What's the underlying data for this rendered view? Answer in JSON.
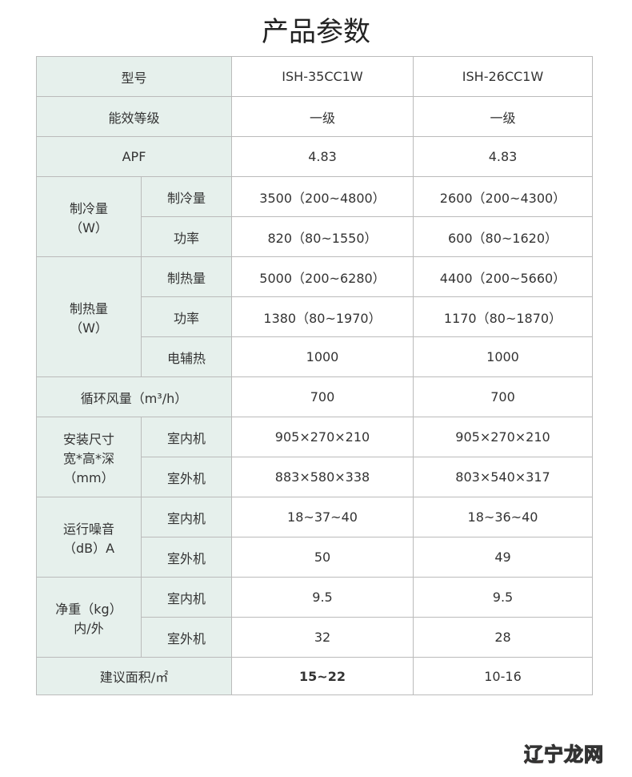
{
  "title": "产品参数",
  "rows": {
    "model": [
      "型号",
      "ISH-35CC1W",
      "ISH-26CC1W"
    ],
    "eff": [
      "能效等级",
      "一级",
      "一级"
    ],
    "apf": [
      "APF",
      "4.83",
      "4.83"
    ],
    "cool": {
      "label1": "制冷量",
      "label2": "（W）",
      "r1": [
        "制冷量",
        "3500（200~4800）",
        "2600（200~4300）"
      ],
      "r2": [
        "功率",
        "820（80~1550）",
        "600（80~1620）"
      ]
    },
    "heat": {
      "label1": "制热量",
      "label2": "（W）",
      "r1": [
        "制热量",
        "5000（200~6280）",
        "4400（200~5660）"
      ],
      "r2": [
        "功率",
        "1380（80~1970）",
        "1170（80~1870）"
      ],
      "r3": [
        "电辅热",
        "1000",
        "1000"
      ]
    },
    "air": [
      "循环风量（m³/h）",
      "700",
      "700"
    ],
    "size": {
      "label1": "安装尺寸",
      "label2": "宽*高*深",
      "label3": "（mm）",
      "r1": [
        "室内机",
        "905×270×210",
        "905×270×210"
      ],
      "r2": [
        "室外机",
        "883×580×338",
        "803×540×317"
      ]
    },
    "noise": {
      "label1": "运行噪音",
      "label2": "（dB）A",
      "r1": [
        "室内机",
        "18~37~40",
        "18~36~40"
      ],
      "r2": [
        "室外机",
        "50",
        "49"
      ]
    },
    "weight": {
      "label1": "净重（kg）",
      "label2": "内/外",
      "r1": [
        "室内机",
        "9.5",
        "9.5"
      ],
      "r2": [
        "室外机",
        "32",
        "28"
      ]
    },
    "area": [
      "建议面积/㎡",
      "15~22",
      "10-16"
    ]
  },
  "watermark": {
    "part1": "辽宁",
    "part2": "龙网"
  }
}
